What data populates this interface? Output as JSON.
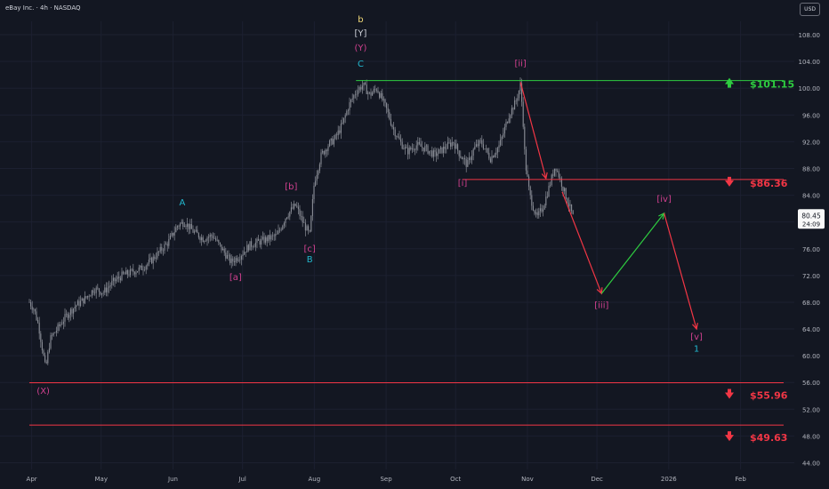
{
  "header": {
    "title": "eBay Inc. · 4h · NASDAQ",
    "currency": "USD"
  },
  "colors": {
    "background": "#131722",
    "axis_text": "#b2b5be",
    "candle": "#8a8d96",
    "green": "#2ecc40",
    "red": "#f23645",
    "magenta": "#d0408f",
    "cyan": "#22b8cf",
    "white": "#d1d4dc",
    "yellow": "#f0d878"
  },
  "chart_data": {
    "type": "line",
    "ylim": [
      43.0,
      110.0
    ],
    "x_ticks": [
      "Apr",
      "May",
      "Jun",
      "Jul",
      "Aug",
      "Sep",
      "Oct",
      "Nov",
      "Dec",
      "2026",
      "Feb"
    ],
    "y_ticks": [
      "108.00",
      "104.00",
      "100.00",
      "96.00",
      "92.00",
      "88.00",
      "84.00",
      "80.00",
      "76.00",
      "72.00",
      "68.00",
      "64.00",
      "60.00",
      "56.00",
      "52.00",
      "48.00",
      "44.00"
    ],
    "last_price": {
      "value": "80.45",
      "countdown": "24:09"
    },
    "price": [
      [
        "2025-03-31",
        68.0
      ],
      [
        "2025-04-02",
        67.0
      ],
      [
        "2025-04-04",
        64.5
      ],
      [
        "2025-04-07",
        58.0
      ],
      [
        "2025-04-09",
        62.5
      ],
      [
        "2025-04-12",
        64.0
      ],
      [
        "2025-04-16",
        66.0
      ],
      [
        "2025-04-20",
        67.5
      ],
      [
        "2025-04-24",
        68.5
      ],
      [
        "2025-04-28",
        70.0
      ],
      [
        "2025-05-02",
        69.5
      ],
      [
        "2025-05-06",
        71.0
      ],
      [
        "2025-05-10",
        72.0
      ],
      [
        "2025-05-14",
        72.5
      ],
      [
        "2025-05-18",
        73.0
      ],
      [
        "2025-05-22",
        74.0
      ],
      [
        "2025-05-26",
        75.5
      ],
      [
        "2025-05-30",
        77.0
      ],
      [
        "2025-06-03",
        79.5
      ],
      [
        "2025-06-06",
        80.0
      ],
      [
        "2025-06-10",
        78.5
      ],
      [
        "2025-06-14",
        77.5
      ],
      [
        "2025-06-18",
        78.0
      ],
      [
        "2025-06-22",
        76.0
      ],
      [
        "2025-06-26",
        74.0
      ],
      [
        "2025-06-30",
        75.0
      ],
      [
        "2025-07-04",
        76.5
      ],
      [
        "2025-07-08",
        77.0
      ],
      [
        "2025-07-12",
        77.5
      ],
      [
        "2025-07-16",
        78.0
      ],
      [
        "2025-07-20",
        81.0
      ],
      [
        "2025-07-24",
        82.5
      ],
      [
        "2025-07-27",
        80.0
      ],
      [
        "2025-07-30",
        78.0
      ],
      [
        "2025-08-01",
        86.0
      ],
      [
        "2025-08-04",
        90.0
      ],
      [
        "2025-08-07",
        91.5
      ],
      [
        "2025-08-10",
        92.5
      ],
      [
        "2025-08-13",
        94.5
      ],
      [
        "2025-08-16",
        97.5
      ],
      [
        "2025-08-19",
        99.5
      ],
      [
        "2025-08-22",
        100.5
      ],
      [
        "2025-08-25",
        99.0
      ],
      [
        "2025-08-28",
        100.0
      ],
      [
        "2025-09-01",
        97.0
      ],
      [
        "2025-09-04",
        94.0
      ],
      [
        "2025-09-07",
        92.0
      ],
      [
        "2025-09-10",
        90.5
      ],
      [
        "2025-09-14",
        91.5
      ],
      [
        "2025-09-18",
        91.0
      ],
      [
        "2025-09-22",
        90.0
      ],
      [
        "2025-09-26",
        91.0
      ],
      [
        "2025-09-30",
        92.0
      ],
      [
        "2025-10-03",
        90.0
      ],
      [
        "2025-10-06",
        88.5
      ],
      [
        "2025-10-09",
        91.0
      ],
      [
        "2025-10-12",
        92.0
      ],
      [
        "2025-10-16",
        89.5
      ],
      [
        "2025-10-20",
        91.5
      ],
      [
        "2025-10-24",
        96.0
      ],
      [
        "2025-10-27",
        98.0
      ],
      [
        "2025-10-29",
        100.5
      ],
      [
        "2025-10-30",
        96.0
      ],
      [
        "2025-10-31",
        89.0
      ],
      [
        "2025-11-02",
        84.0
      ],
      [
        "2025-11-05",
        80.5
      ],
      [
        "2025-11-08",
        82.5
      ],
      [
        "2025-11-11",
        86.0
      ],
      [
        "2025-11-13",
        88.5
      ],
      [
        "2025-11-16",
        85.5
      ],
      [
        "2025-11-19",
        82.5
      ],
      [
        "2025-11-21",
        80.45
      ]
    ],
    "levels": [
      {
        "label": "$101.15",
        "value": 101.15,
        "color": "green",
        "direction": "up",
        "from": "2025-08-19"
      },
      {
        "label": "$86.36",
        "value": 86.36,
        "color": "red",
        "direction": "down",
        "from": "2025-10-04"
      },
      {
        "label": "$55.96",
        "value": 55.96,
        "color": "red",
        "direction": "down",
        "from": "2025-03-31"
      },
      {
        "label": "$49.63",
        "value": 49.63,
        "color": "red",
        "direction": "down",
        "from": "2025-03-31"
      }
    ],
    "projection": [
      {
        "from": [
          "2025-10-29",
          100.9
        ],
        "to": [
          "2025-11-09",
          86.5
        ],
        "color": "red"
      },
      {
        "from": [
          "2025-11-16",
          84.5
        ],
        "to": [
          "2025-12-03",
          69.3
        ],
        "color": "red"
      },
      {
        "from": [
          "2025-12-03",
          69.3
        ],
        "to": [
          "2025-12-30",
          81.3
        ],
        "color": "green"
      },
      {
        "from": [
          "2025-12-30",
          81.3
        ],
        "to": [
          "2026-01-13",
          64.0
        ],
        "color": "red"
      }
    ],
    "annotations": [
      {
        "text": "(X)",
        "x": "2025-04-06",
        "y": 54.3,
        "color": "magenta"
      },
      {
        "text": "[a]",
        "x": "2025-06-28",
        "y": 71.3,
        "color": "magenta"
      },
      {
        "text": "A",
        "x": "2025-06-05",
        "y": 82.5,
        "color": "cyan"
      },
      {
        "text": "[b]",
        "x": "2025-07-22",
        "y": 84.9,
        "color": "magenta"
      },
      {
        "text": "[c]",
        "x": "2025-07-30",
        "y": 75.6,
        "color": "magenta"
      },
      {
        "text": "B",
        "x": "2025-07-30",
        "y": 74.0,
        "color": "cyan"
      },
      {
        "text": "b",
        "x": "2025-08-21",
        "y": 109.9,
        "color": "yellow"
      },
      {
        "text": "[Y]",
        "x": "2025-08-21",
        "y": 107.8,
        "color": "white"
      },
      {
        "text": "(Y)",
        "x": "2025-08-21",
        "y": 105.6,
        "color": "magenta"
      },
      {
        "text": "C",
        "x": "2025-08-21",
        "y": 103.2,
        "color": "cyan"
      },
      {
        "text": "[ii]",
        "x": "2025-10-29",
        "y": 103.3,
        "color": "magenta"
      },
      {
        "text": "[i]",
        "x": "2025-10-04",
        "y": 85.4,
        "color": "magenta"
      },
      {
        "text": "[iii]",
        "x": "2025-12-03",
        "y": 67.1,
        "color": "magenta"
      },
      {
        "text": "[iv]",
        "x": "2025-12-30",
        "y": 83.0,
        "color": "magenta"
      },
      {
        "text": "[v]",
        "x": "2026-01-13",
        "y": 62.4,
        "color": "magenta"
      },
      {
        "text": "1",
        "x": "2026-01-13",
        "y": 60.6,
        "color": "cyan"
      }
    ]
  }
}
